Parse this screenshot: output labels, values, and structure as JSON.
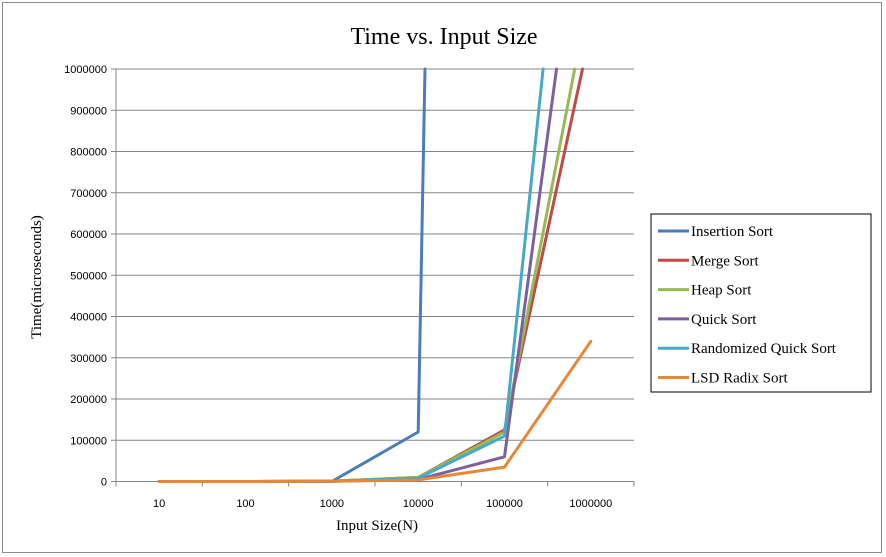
{
  "chart_data": {
    "type": "line",
    "title": "Time vs. Input Size",
    "xlabel": "Input  Size(N)",
    "ylabel": "Time(microseconds)",
    "x_categories": [
      "10",
      "100",
      "1000",
      "10000",
      "100000",
      "1000000"
    ],
    "y_ticks": [
      "0",
      "100000",
      "200000",
      "300000",
      "400000",
      "500000",
      "600000",
      "700000",
      "800000",
      "900000",
      "1000000"
    ],
    "ylim": [
      0,
      1000000
    ],
    "grid": "horizontal",
    "legend_position": "right",
    "series": [
      {
        "name": "Insertion Sort",
        "color": "#4a7ebb",
        "points": [
          [
            10,
            0
          ],
          [
            100,
            0
          ],
          [
            1000,
            0
          ],
          [
            10000,
            120000
          ],
          [
            12000,
            1000000
          ]
        ]
      },
      {
        "name": "Merge Sort",
        "color": "#be4b48",
        "points": [
          [
            10,
            0
          ],
          [
            100,
            0
          ],
          [
            1000,
            1000
          ],
          [
            10000,
            10000
          ],
          [
            100000,
            125000
          ],
          [
            800000,
            1000000
          ]
        ]
      },
      {
        "name": "Heap Sort",
        "color": "#98b954",
        "points": [
          [
            10,
            0
          ],
          [
            100,
            0
          ],
          [
            1000,
            1000
          ],
          [
            10000,
            10000
          ],
          [
            100000,
            120000
          ],
          [
            650000,
            1000000
          ]
        ]
      },
      {
        "name": "Quick Sort",
        "color": "#7d60a0",
        "points": [
          [
            10,
            0
          ],
          [
            100,
            0
          ],
          [
            1000,
            500
          ],
          [
            10000,
            5000
          ],
          [
            100000,
            60000
          ],
          [
            400000,
            1000000
          ]
        ]
      },
      {
        "name": "Randomized Quick Sort",
        "color": "#46aac5",
        "points": [
          [
            10,
            0
          ],
          [
            100,
            0
          ],
          [
            1000,
            500
          ],
          [
            10000,
            8000
          ],
          [
            100000,
            110000
          ],
          [
            280000,
            1000000
          ]
        ]
      },
      {
        "name": "LSD Radix Sort",
        "color": "#e8873a",
        "points": [
          [
            10,
            0
          ],
          [
            100,
            0
          ],
          [
            1000,
            500
          ],
          [
            10000,
            4000
          ],
          [
            100000,
            35000
          ],
          [
            1000000,
            340000
          ]
        ]
      }
    ]
  }
}
